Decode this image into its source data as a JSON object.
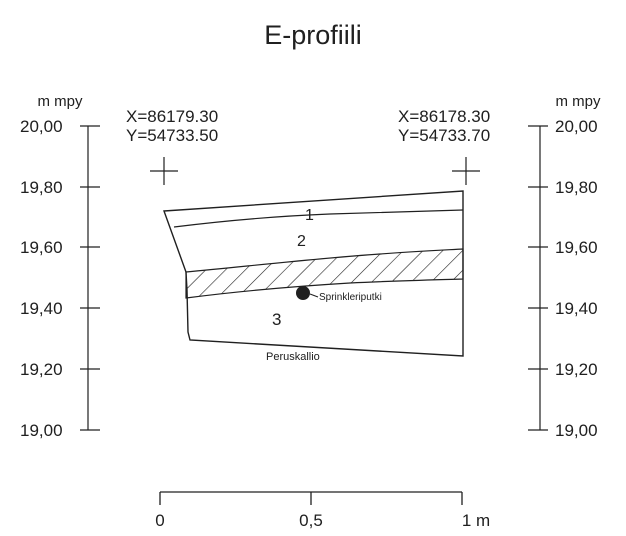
{
  "title": "E-profiili",
  "axis_unit": "m mpy",
  "elevation_ticks": [
    "20,00",
    "19,80",
    "19,60",
    "19,40",
    "19,20",
    "19,00"
  ],
  "corners": {
    "left": {
      "x": "X=86179.30",
      "y": "Y=54733.50"
    },
    "right": {
      "x": "X=86178.30",
      "y": "Y=54733.70"
    }
  },
  "layers": [
    {
      "number": "1"
    },
    {
      "number": "2"
    },
    {
      "number": "3"
    }
  ],
  "annotations": {
    "pipe": "Sprinkleriputki",
    "bedrock": "Peruskallio"
  },
  "scale_bar": {
    "labels": [
      "0",
      "0,5",
      "1 m"
    ]
  },
  "colors": {
    "ink": "#202020",
    "background": "#ffffff"
  }
}
